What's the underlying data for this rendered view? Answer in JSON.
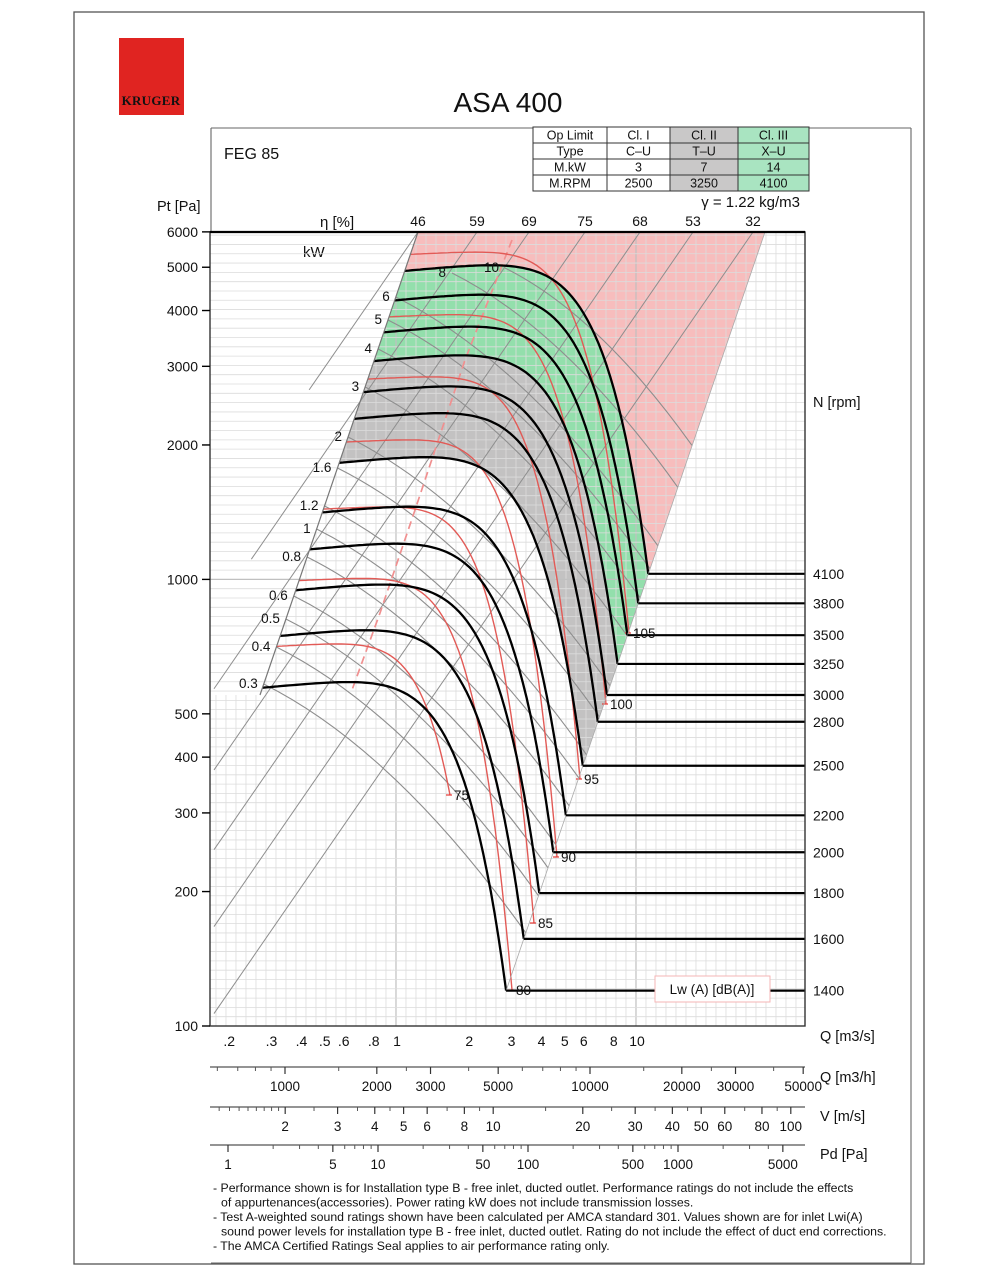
{
  "page": {
    "logo_text": "KRUGER",
    "title": "ASA 400",
    "feg_label": "FEG 85",
    "gamma_note": "γ = 1.22 kg/m3"
  },
  "op_table": {
    "rows": [
      [
        "Op Limit",
        "Cl. I",
        "Cl. II",
        "Cl. III"
      ],
      [
        "Type",
        "C–U",
        "T–U",
        "X–U"
      ],
      [
        "M.kW",
        "3",
        "7",
        "14"
      ],
      [
        "M.RPM",
        "2500",
        "3250",
        "4100"
      ]
    ]
  },
  "axis_titles": {
    "pt": "Pt [Pa]",
    "n": "N [rpm]",
    "q_m3s": "Q [m3/s]",
    "q_m3h": "Q [m3/h]",
    "v": "V [m/s]",
    "pd": "Pd [Pa]",
    "eta": "η [%]",
    "kw": "kW",
    "lw": "Lw (A) [dB(A)]"
  },
  "pt_ticks": [
    "6000",
    "5000",
    "4000",
    "3000",
    "2000",
    "1000",
    "500",
    "400",
    "300",
    "200",
    "100"
  ],
  "q_ticks": [
    ".2",
    ".3",
    ".4",
    ".5",
    ".6",
    ".8",
    "1",
    "2",
    "3",
    "4",
    "5",
    "6",
    "8",
    "10"
  ],
  "q_h_ticks": [
    "1000",
    "2000",
    "3000",
    "5000",
    "10000",
    "20000",
    "30000",
    "50000"
  ],
  "v_ticks": [
    "2",
    "3",
    "4",
    "5",
    "6",
    "8",
    "10",
    "20",
    "30",
    "40",
    "50",
    "60",
    "80",
    "100"
  ],
  "pd_ticks": [
    "1",
    "5",
    "10",
    "50",
    "100",
    "500",
    "1000",
    "5000"
  ],
  "eta_values": [
    46,
    59,
    69,
    75,
    68,
    53,
    32
  ],
  "rpm_values": [
    1400,
    1600,
    1800,
    2000,
    2200,
    2500,
    2800,
    3000,
    3250,
    3500,
    3800,
    4100
  ],
  "kw_values": [
    0.3,
    0.4,
    0.5,
    0.6,
    0.8,
    1,
    1.2,
    1.6,
    2,
    3,
    4,
    5,
    6,
    8,
    10
  ],
  "lw_values": [
    75,
    80,
    85,
    90,
    95,
    100,
    105
  ],
  "footnotes": [
    {
      "text": "- Performance shown is for Installation type B - free inlet, ducted outlet. Performance ratings do not include the effects",
      "indent": false
    },
    {
      "text": "of appurtenances(accessories). Power rating kW does not include transmission losses.",
      "indent": true
    },
    {
      "text": "- Test A-weighted sound ratings shown have been calculated per AMCA standard 301. Values shown are for inlet Lwi(A)",
      "indent": false
    },
    {
      "text": "sound power levels for installation type B - free inlet, ducted outlet. Rating do not include the effect of duct end corrections.",
      "indent": true
    },
    {
      "text": "- The AMCA Certified Ratings Seal applies to air performance rating only.",
      "indent": false
    }
  ],
  "colors": {
    "class2_fill": "#c3c2c2",
    "class3_fill": "#93dfac",
    "over_limit_fill": "#f7bdbd",
    "table_gray": "#c9c8c8",
    "table_green": "#a9e4c1",
    "red": "#e53935",
    "curve_red": "#e25a56",
    "dashed_red": "#f09090",
    "logo_red": "#e02421",
    "grid": "#dcdcdc",
    "grid_major": "#c0c0c0",
    "thin_gray_line": "#8e8e8e"
  },
  "chart_data": {
    "type": "line",
    "title": "ASA 400 centrifugal fan performance chart",
    "xlabel": "Q [m3/s]",
    "ylabel": "Pt [Pa]",
    "x_scale": "log",
    "y_scale": "log",
    "xlim": [
      0.16,
      50
    ],
    "ylim": [
      100,
      6000
    ],
    "x_ticks": [
      0.2,
      0.3,
      0.4,
      0.5,
      0.6,
      0.8,
      1,
      2,
      3,
      4,
      5,
      6,
      8,
      10
    ],
    "y_ticks": [
      100,
      200,
      300,
      400,
      500,
      1000,
      2000,
      3000,
      4000,
      5000,
      6000
    ],
    "grid": true,
    "legend_position": "none",
    "speed_curves_rpm": [
      1400,
      1600,
      1800,
      2000,
      2200,
      2500,
      2800,
      3000,
      3250,
      3500,
      3800,
      4100
    ],
    "series": [
      {
        "name": "1400 rpm",
        "points": [
          [
            0.27,
            570
          ],
          [
            0.87,
            585
          ],
          [
            2.8,
            120
          ]
        ]
      },
      {
        "name": "1600 rpm",
        "points": [
          [
            0.31,
            745
          ],
          [
            1.0,
            765
          ],
          [
            3.2,
            157
          ]
        ]
      },
      {
        "name": "1800 rpm",
        "points": [
          [
            0.35,
            945
          ],
          [
            1.12,
            970
          ],
          [
            3.6,
            198
          ]
        ]
      },
      {
        "name": "2000 rpm",
        "points": [
          [
            0.39,
            1165
          ],
          [
            1.25,
            1195
          ],
          [
            4.0,
            245
          ]
        ]
      },
      {
        "name": "2200 rpm",
        "points": [
          [
            0.43,
            1410
          ],
          [
            1.37,
            1450
          ],
          [
            4.4,
            296
          ]
        ]
      },
      {
        "name": "2500 rpm",
        "points": [
          [
            0.49,
            1820
          ],
          [
            1.56,
            1870
          ],
          [
            5.0,
            383
          ]
        ]
      },
      {
        "name": "2800 rpm",
        "points": [
          [
            0.55,
            2290
          ],
          [
            1.75,
            2350
          ],
          [
            5.6,
            480
          ]
        ]
      },
      {
        "name": "3000 rpm",
        "points": [
          [
            0.59,
            2630
          ],
          [
            1.87,
            2700
          ],
          [
            6.0,
            551
          ]
        ]
      },
      {
        "name": "3250 rpm",
        "points": [
          [
            0.64,
            3080
          ],
          [
            2.03,
            3160
          ],
          [
            6.5,
            647
          ]
        ]
      },
      {
        "name": "3500 rpm",
        "points": [
          [
            0.69,
            3575
          ],
          [
            2.19,
            3670
          ],
          [
            7.0,
            750
          ]
        ]
      },
      {
        "name": "3800 rpm",
        "points": [
          [
            0.74,
            4210
          ],
          [
            2.37,
            4320
          ],
          [
            7.6,
            884
          ]
        ]
      },
      {
        "name": "4100 rpm",
        "points": [
          [
            0.8,
            4905
          ],
          [
            2.56,
            5030
          ],
          [
            8.2,
            1029
          ]
        ]
      }
    ],
    "efficiency_lines_pct": [
      46,
      59,
      69,
      75,
      68,
      53,
      32
    ],
    "power_lines_kW": [
      0.3,
      0.4,
      0.5,
      0.6,
      0.8,
      1,
      1.2,
      1.6,
      2,
      3,
      4,
      5,
      6,
      8,
      10
    ],
    "sound_power_lines_dBA": [
      75,
      80,
      85,
      90,
      95,
      100,
      105
    ],
    "classes": [
      {
        "op_limit": "Cl. I",
        "type": "C–U",
        "m_kw": 3,
        "m_rpm": 2500,
        "region_color": "white"
      },
      {
        "op_limit": "Cl. II",
        "type": "T–U",
        "m_kw": 7,
        "m_rpm": 3250,
        "region_color": "gray"
      },
      {
        "op_limit": "Cl. III",
        "type": "X–U",
        "m_kw": 14,
        "m_rpm": 4100,
        "region_color": "green"
      }
    ],
    "air_density": "γ = 1.22 kg/m3",
    "efficiency_grade": "FEG 85",
    "sound_label": "Lw (A) [dB(A)]",
    "secondary_x_axes": [
      {
        "label": "Q [m3/h]",
        "ticks": [
          1000,
          2000,
          3000,
          5000,
          10000,
          20000,
          30000,
          50000
        ]
      },
      {
        "label": "V [m/s]",
        "ticks": [
          2,
          3,
          4,
          5,
          6,
          8,
          10,
          20,
          30,
          40,
          50,
          60,
          80,
          100
        ]
      },
      {
        "label": "Pd [Pa]",
        "ticks": [
          1,
          5,
          10,
          50,
          100,
          500,
          1000,
          5000
        ]
      }
    ]
  }
}
